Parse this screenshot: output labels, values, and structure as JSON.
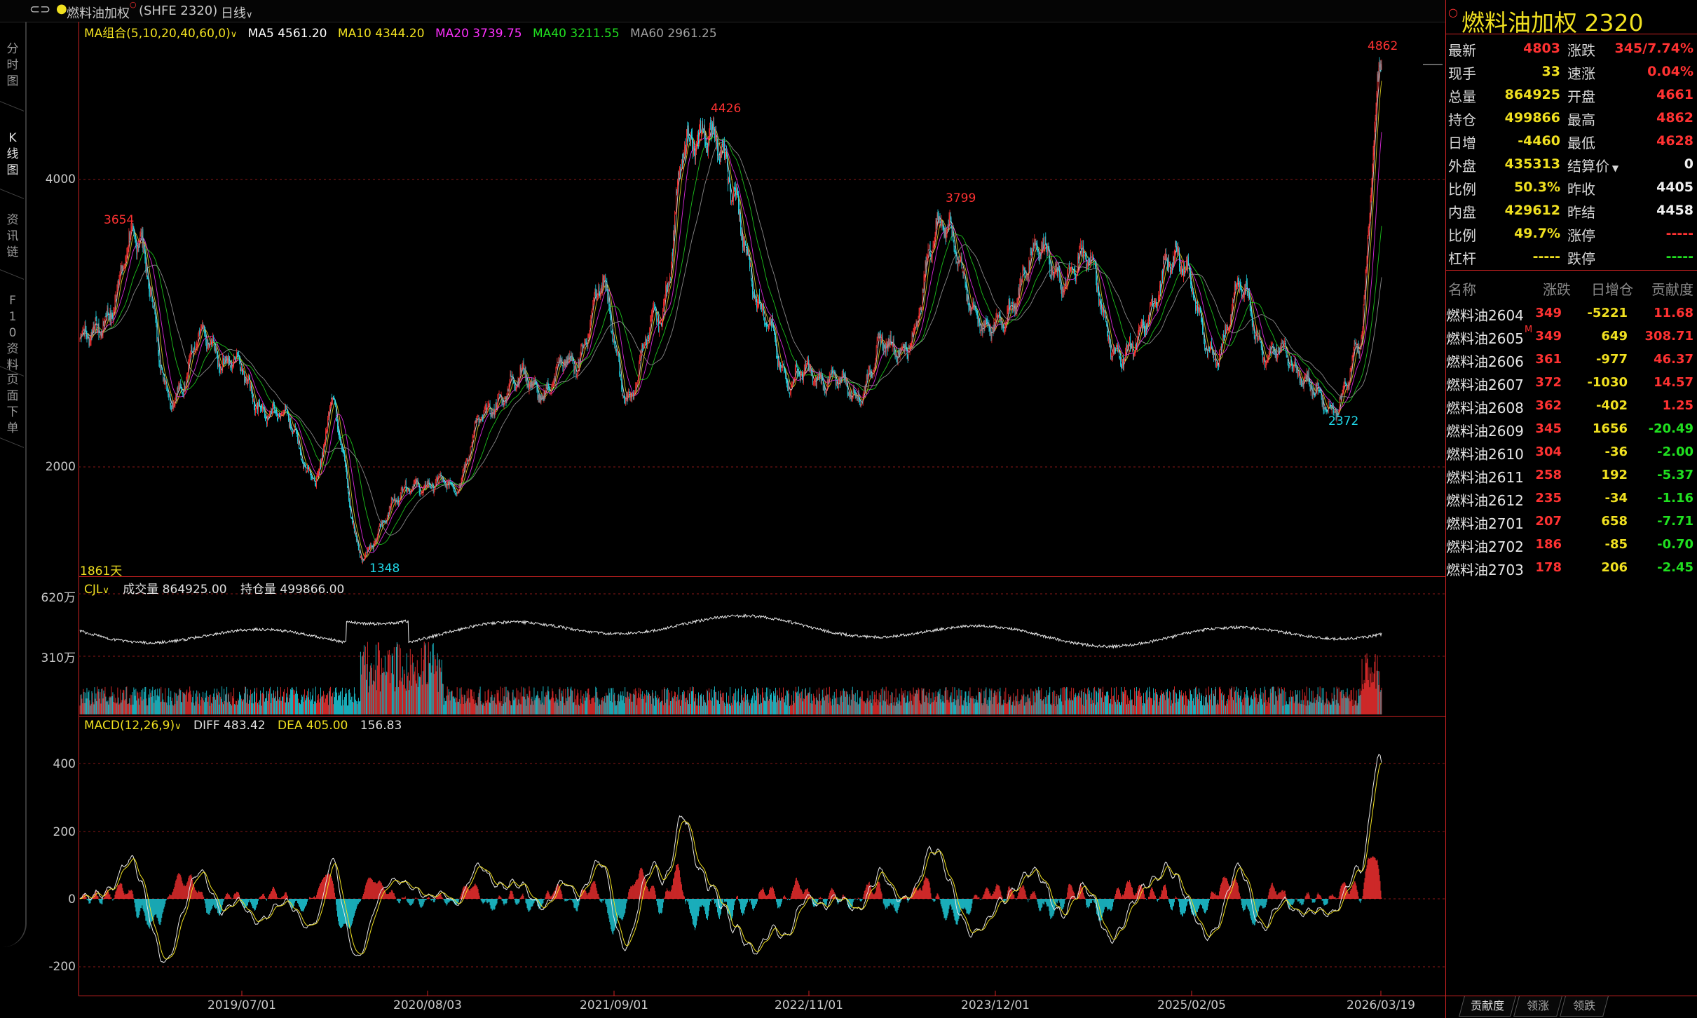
{
  "header": {
    "name": "燃料油加权",
    "code": "(SHFE 2320)",
    "period": "日线"
  },
  "left_tabs": [
    "分时图",
    "K线图",
    "资讯链",
    "F10资料",
    "页面下单"
  ],
  "colors": {
    "up": "#ff3232",
    "down": "#20d8e8",
    "grid": "#cc2222",
    "ma5": "#ffffff",
    "ma10": "#f0e020",
    "ma20": "#ff30ff",
    "ma40": "#20e020",
    "ma60": "#a0a0a0"
  },
  "main_legend": {
    "group": "MA组合(5,10,20,40,60,0)",
    "ma5": "MA5 4561.20",
    "ma10": "MA10 4344.20",
    "ma20": "MA20 3739.75",
    "ma40": "MA40 3211.55",
    "ma60": "MA60 2961.25",
    "days": "1861天"
  },
  "volume_legend": {
    "name": "CJL",
    "volume": "成交量 864925.00",
    "oi": "持仓量 499866.00"
  },
  "macd_legend": {
    "name": "MACD(12,26,9)",
    "diff": "DIFF 483.42",
    "dea": "DEA 405.00",
    "macd": "156.83"
  },
  "chart_data": [
    {
      "type": "candlestick",
      "title": "燃料油加权",
      "y_ticks": [
        "4000",
        "2000"
      ],
      "annotations": [
        {
          "label": "3654",
          "kind": "high"
        },
        {
          "label": "4426",
          "kind": "high"
        },
        {
          "label": "3799",
          "kind": "high"
        },
        {
          "label": "4862",
          "kind": "high"
        },
        {
          "label": "1348",
          "kind": "low"
        },
        {
          "label": "2372",
          "kind": "low"
        }
      ],
      "x_ticks": [
        "2019/07/01",
        "2020/08/03",
        "2021/09/01",
        "2022/11/01",
        "2023/12/01",
        "2025/02/05",
        "2026/03/19"
      ],
      "price_path": [
        [
          "2018/12/01",
          2830
        ],
        [
          "2019/02/01",
          3100
        ],
        [
          "2019/04/01",
          3654
        ],
        [
          "2019/06/01",
          2450
        ],
        [
          "2019/08/01",
          2850
        ],
        [
          "2019/10/01",
          2780
        ],
        [
          "2019/12/01",
          2450
        ],
        [
          "2020/02/01",
          2300
        ],
        [
          "2020/04/01",
          1900
        ],
        [
          "2020/05/01",
          2450
        ],
        [
          "2020/07/01",
          1348
        ],
        [
          "2020/09/01",
          1750
        ],
        [
          "2020/11/01",
          1900
        ],
        [
          "2021/01/01",
          1850
        ],
        [
          "2021/03/01",
          2300
        ],
        [
          "2021/05/01",
          2600
        ],
        [
          "2021/07/01",
          2550
        ],
        [
          "2021/09/01",
          2700
        ],
        [
          "2021/11/01",
          3200
        ],
        [
          "2022/01/01",
          2500
        ],
        [
          "2022/03/01",
          3100
        ],
        [
          "2022/05/01",
          4200
        ],
        [
          "2022/06/01",
          4426
        ],
        [
          "2022/08/01",
          3900
        ],
        [
          "2022/10/01",
          3000
        ],
        [
          "2022/12/01",
          2600
        ],
        [
          "2023/02/01",
          2650
        ],
        [
          "2023/04/01",
          2500
        ],
        [
          "2023/06/01",
          2800
        ],
        [
          "2023/08/01",
          2900
        ],
        [
          "2023/10/01",
          3799
        ],
        [
          "2023/12/01",
          3100
        ],
        [
          "2024/02/01",
          2950
        ],
        [
          "2024/04/01",
          3500
        ],
        [
          "2024/06/01",
          3350
        ],
        [
          "2024/08/01",
          3400
        ],
        [
          "2024/10/01",
          2700
        ],
        [
          "2024/12/01",
          3100
        ],
        [
          "2025/02/01",
          3520
        ],
        [
          "2025/04/01",
          2750
        ],
        [
          "2025/06/01",
          3200
        ],
        [
          "2025/08/01",
          2800
        ],
        [
          "2025/10/01",
          2700
        ],
        [
          "2025/12/01",
          2372
        ],
        [
          "2026/02/01",
          2800
        ],
        [
          "2026/03/19",
          4862
        ]
      ]
    },
    {
      "type": "bar",
      "title": "CJL",
      "y_ticks": [
        "620万",
        "310万"
      ]
    },
    {
      "type": "bar",
      "title": "MACD(12,26,9)",
      "y_ticks": [
        "400",
        "200",
        "0",
        "-200"
      ]
    }
  ],
  "quote": {
    "title": "燃料油加权  2320",
    "rows": [
      {
        "l1": "最新",
        "v1": "4803",
        "c1": "red",
        "l2": "涨跌",
        "v2": "345/7.74%",
        "c2": "red"
      },
      {
        "l1": "现手",
        "v1": "33",
        "c1": "yel",
        "l2": "速涨",
        "v2": "0.04%",
        "c2": "red"
      },
      {
        "l1": "总量",
        "v1": "864925",
        "c1": "yel",
        "l2": "开盘",
        "v2": "4661",
        "c2": "red"
      },
      {
        "l1": "持仓",
        "v1": "499866",
        "c1": "yel",
        "l2": "最高",
        "v2": "4862",
        "c2": "red"
      },
      {
        "l1": "日增",
        "v1": "-4460",
        "c1": "yel",
        "l2": "最低",
        "v2": "4628",
        "c2": "red"
      },
      {
        "l1": "外盘",
        "v1": "435313",
        "c1": "yel",
        "l2": "结算价",
        "v2": "0",
        "c2": "wht"
      },
      {
        "l1": "比例",
        "v1": "50.3%",
        "c1": "yel",
        "l2": "昨收",
        "v2": "4405",
        "c2": "wht"
      },
      {
        "l1": "内盘",
        "v1": "429612",
        "c1": "yel",
        "l2": "昨结",
        "v2": "4458",
        "c2": "wht"
      },
      {
        "l1": "比例",
        "v1": "49.7%",
        "c1": "yel",
        "l2": "涨停",
        "v2": "-----",
        "c2": "red"
      },
      {
        "l1": "杠杆",
        "v1": "-----",
        "c1": "yel",
        "l2": "跌停",
        "v2": "-----",
        "c2": "grn"
      }
    ]
  },
  "contracts": {
    "headers": [
      "名称",
      "涨跌",
      "日增仓",
      "贡献度"
    ],
    "rows": [
      {
        "name": "燃料油2604",
        "chg": "349",
        "oi": "-5221",
        "contrib": "11.68",
        "cc": "red",
        "mark": ""
      },
      {
        "name": "燃料油2605",
        "chg": "349",
        "oi": "649",
        "contrib": "308.71",
        "cc": "red",
        "mark": "M"
      },
      {
        "name": "燃料油2606",
        "chg": "361",
        "oi": "-977",
        "contrib": "46.37",
        "cc": "red",
        "mark": ""
      },
      {
        "name": "燃料油2607",
        "chg": "372",
        "oi": "-1030",
        "contrib": "14.57",
        "cc": "red",
        "mark": ""
      },
      {
        "name": "燃料油2608",
        "chg": "362",
        "oi": "-402",
        "contrib": "1.25",
        "cc": "red",
        "mark": ""
      },
      {
        "name": "燃料油2609",
        "chg": "345",
        "oi": "1656",
        "contrib": "-20.49",
        "cc": "grn",
        "mark": ""
      },
      {
        "name": "燃料油2610",
        "chg": "304",
        "oi": "-36",
        "contrib": "-2.00",
        "cc": "grn",
        "mark": ""
      },
      {
        "name": "燃料油2611",
        "chg": "258",
        "oi": "192",
        "contrib": "-5.37",
        "cc": "grn",
        "mark": ""
      },
      {
        "name": "燃料油2612",
        "chg": "235",
        "oi": "-34",
        "contrib": "-1.16",
        "cc": "grn",
        "mark": ""
      },
      {
        "name": "燃料油2701",
        "chg": "207",
        "oi": "658",
        "contrib": "-7.71",
        "cc": "grn",
        "mark": ""
      },
      {
        "name": "燃料油2702",
        "chg": "186",
        "oi": "-85",
        "contrib": "-0.70",
        "cc": "grn",
        "mark": ""
      },
      {
        "name": "燃料油2703",
        "chg": "178",
        "oi": "206",
        "contrib": "-2.45",
        "cc": "grn",
        "mark": ""
      }
    ]
  },
  "bottom_tabs": [
    "贡献度",
    "领涨",
    "领跌"
  ]
}
